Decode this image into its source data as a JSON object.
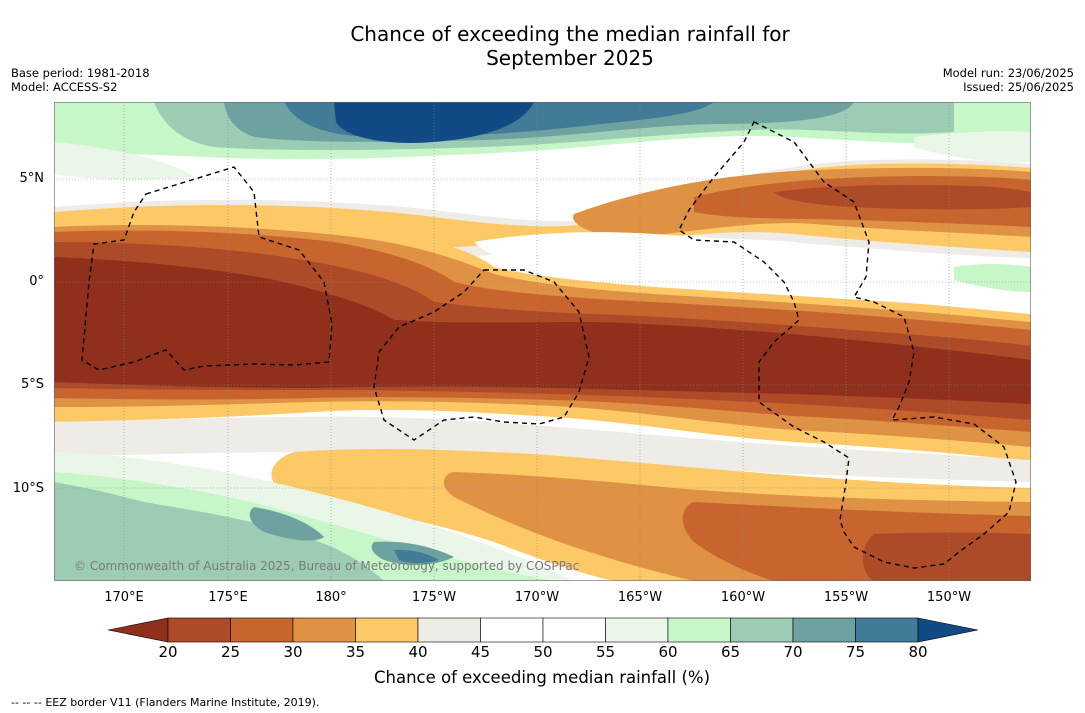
{
  "title": {
    "line1": "Chance of exceeding the median rainfall for",
    "line2": "September 2025"
  },
  "meta": {
    "base_period": "Base period: 1981-2018",
    "model": "Model: ACCESS-S2",
    "model_run": "Model run: 23/06/2025",
    "issued": "Issued: 25/06/2025"
  },
  "map": {
    "lat_labels": [
      "5°N",
      "0°",
      "5°S",
      "10°S"
    ],
    "lon_labels": [
      "170°E",
      "175°E",
      "180°",
      "175°W",
      "170°W",
      "165°W",
      "160°W",
      "155°W",
      "150°W"
    ],
    "watermark": "© Commonwealth of Australia 2025, Bureau of Meteorology, supported by COSPPac",
    "colors": {
      "lt20": "#8f2f1c",
      "b20_25": "#ad4a27",
      "b25_30": "#c8652e",
      "b30_35": "#df9144",
      "b35_40": "#fdc966",
      "b40_45": "#efebe6",
      "b45_55": "#ffffff",
      "b55_60": "#eaf6e8",
      "b60_65": "#c7f6c8",
      "b65_70": "#9ccdb4",
      "b70_75": "#6ea2a0",
      "b75_80": "#427b98",
      "gt80": "#124a85"
    },
    "eez_border": "EEZ border V11 (Flanders Marine Institute, 2019)."
  },
  "colorbar": {
    "ticks": [
      "20",
      "25",
      "30",
      "35",
      "40",
      "45",
      "50",
      "55",
      "60",
      "65",
      "70",
      "75",
      "80"
    ],
    "colors": [
      "#ad4a27",
      "#c8652e",
      "#df9144",
      "#fdc966",
      "#efebe6",
      "#ffffff",
      "#ffffff",
      "#eaf6e8",
      "#c7f6c8",
      "#9ccdb4",
      "#6ea2a0",
      "#427b98"
    ],
    "under_color": "#8f2f1c",
    "over_color": "#124a85",
    "label": "Chance of exceeding median rainfall (%)"
  },
  "legend": {
    "dashes": "--  --  --",
    "text": "EEZ border V11 (Flanders Marine Institute, 2019)."
  }
}
